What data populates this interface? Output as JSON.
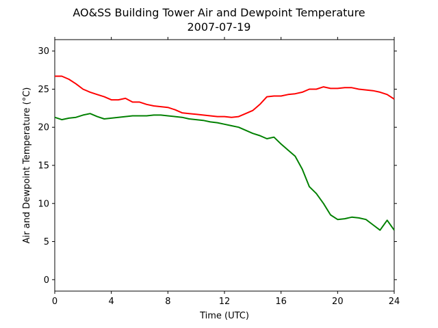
{
  "chart_data": {
    "type": "line",
    "title": "AO&SS Building Tower Air and Dewpoint Temperature",
    "subtitle": "2007-07-19",
    "xlabel": "Time (UTC)",
    "ylabel": "Air and Dewpoint Temperature (°C)",
    "xlim": [
      0,
      24
    ],
    "ylim": [
      -1.5,
      31.5
    ],
    "x_ticks": [
      0,
      4,
      8,
      12,
      16,
      20,
      24
    ],
    "y_ticks": [
      0,
      5,
      10,
      15,
      20,
      25,
      30
    ],
    "grid": false,
    "series": [
      {
        "color": "#ff0000",
        "x": [
          0,
          0.5,
          1,
          1.5,
          2,
          2.5,
          3,
          3.5,
          4,
          4.5,
          5,
          5.5,
          6,
          6.5,
          7,
          7.5,
          8,
          8.5,
          9,
          9.5,
          10,
          10.5,
          11,
          11.5,
          12,
          12.5,
          13,
          13.5,
          14,
          14.5,
          15,
          15.5,
          16,
          16.5,
          17,
          17.5,
          18,
          18.5,
          19,
          19.5,
          20,
          20.5,
          21,
          21.5,
          22,
          22.5,
          23,
          23.5,
          24
        ],
        "y": [
          26.7,
          26.7,
          26.3,
          25.7,
          25.0,
          24.6,
          24.3,
          24.0,
          23.6,
          23.6,
          23.8,
          23.3,
          23.3,
          23.0,
          22.8,
          22.7,
          22.6,
          22.3,
          21.9,
          21.8,
          21.7,
          21.6,
          21.5,
          21.4,
          21.4,
          21.3,
          21.4,
          21.8,
          22.2,
          23.0,
          24.0,
          24.1,
          24.1,
          24.3,
          24.4,
          24.6,
          25.0,
          25.0,
          25.3,
          25.1,
          25.1,
          25.2,
          25.2,
          25.0,
          24.9,
          24.8,
          24.6,
          24.3,
          23.7
        ]
      },
      {
        "color": "#008000",
        "x": [
          0,
          0.5,
          1,
          1.5,
          2,
          2.5,
          3,
          3.5,
          4,
          4.5,
          5,
          5.5,
          6,
          6.5,
          7,
          7.5,
          8,
          8.5,
          9,
          9.5,
          10,
          10.5,
          11,
          11.5,
          12,
          12.5,
          13,
          13.5,
          14,
          14.5,
          15,
          15.5,
          16,
          16.5,
          17,
          17.5,
          18,
          18.5,
          19,
          19.5,
          20,
          20.5,
          21,
          21.5,
          22,
          22.5,
          23,
          23.5,
          24
        ],
        "y": [
          21.3,
          21.0,
          21.2,
          21.3,
          21.6,
          21.8,
          21.4,
          21.1,
          21.2,
          21.3,
          21.4,
          21.5,
          21.5,
          21.5,
          21.6,
          21.6,
          21.5,
          21.4,
          21.3,
          21.1,
          21.0,
          20.9,
          20.7,
          20.6,
          20.4,
          20.2,
          20.0,
          19.6,
          19.2,
          18.9,
          18.5,
          18.7,
          17.8,
          17.0,
          16.2,
          14.5,
          12.2,
          11.3,
          10.0,
          8.5,
          7.9,
          8.0,
          8.2,
          8.1,
          7.9,
          7.2,
          6.5,
          7.8,
          6.5
        ]
      }
    ]
  }
}
